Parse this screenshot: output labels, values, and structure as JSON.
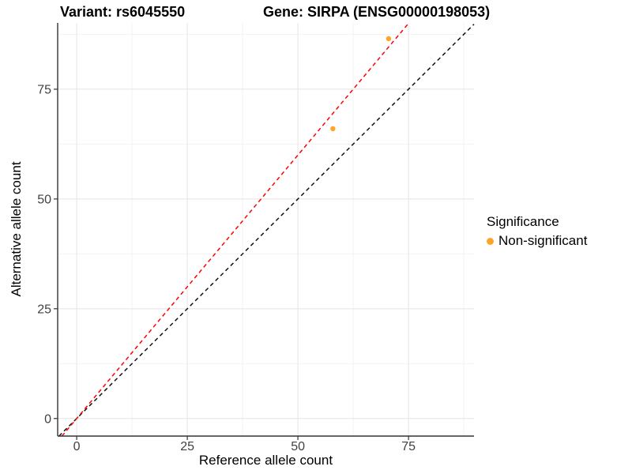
{
  "figure": {
    "title_left": "Variant: rs6045550",
    "title_right": "Gene: SIRPA (ENSG00000198053)"
  },
  "chart_data": {
    "type": "scatter",
    "title": "Variant: rs6045550   Gene: SIRPA (ENSG00000198053)",
    "xlabel": "Reference allele count",
    "ylabel": "Alternative allele count",
    "xlim": [
      -4.3,
      89.8
    ],
    "ylim": [
      -4.0,
      90.1
    ],
    "x_ticks": [
      0,
      25,
      50,
      75
    ],
    "y_ticks": [
      0,
      25,
      50,
      75
    ],
    "x_minor_ticks": [
      12.5,
      37.5,
      62.5,
      87.5
    ],
    "y_minor_ticks": [
      12.5,
      37.5,
      62.5,
      87.5
    ],
    "grid": true,
    "series": [
      {
        "name": "Non-significant",
        "color": "#FFA424",
        "points": [
          {
            "x": 57.9,
            "y": 66.0
          },
          {
            "x": 70.5,
            "y": 86.5
          }
        ]
      }
    ],
    "reference_lines": [
      {
        "name": "identity-line",
        "slope": 1.0,
        "intercept": 0,
        "color": "#111111",
        "style": "dashed"
      },
      {
        "name": "fitted-ratio-line",
        "slope": 1.2,
        "intercept": 0,
        "color": "#FF0000",
        "style": "dashed"
      }
    ],
    "legend": {
      "title": "Significance",
      "position": "right",
      "items": [
        {
          "label": "Non-significant",
          "color": "#FFA424"
        }
      ]
    },
    "colors": {
      "point_orange": "#FFA424",
      "grid_major": "#E4E4E4",
      "grid_minor": "#F3F3F3",
      "axis_line": "#333333",
      "tick_text": "#404040",
      "background": "#FFFFFF"
    }
  }
}
